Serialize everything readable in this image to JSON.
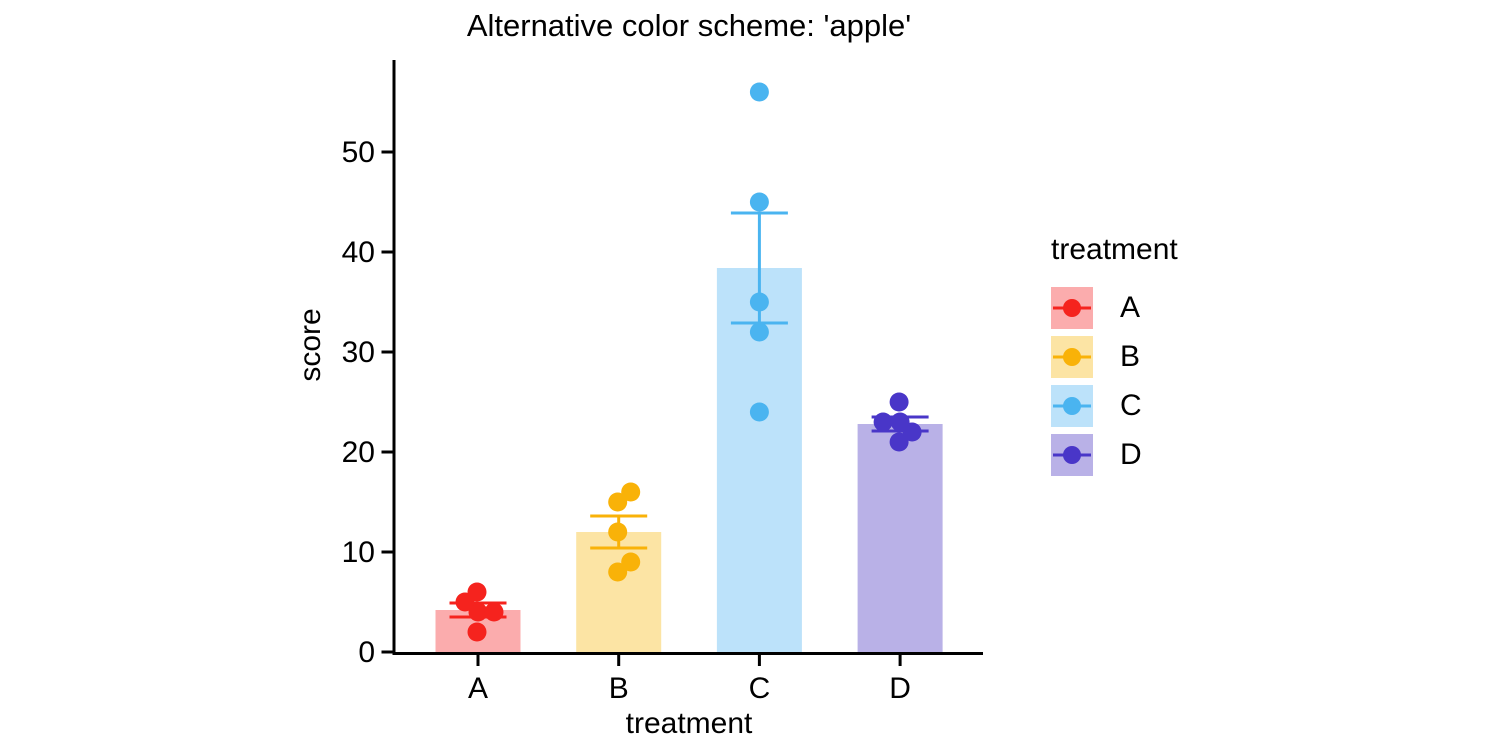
{
  "chart_data": {
    "type": "bar",
    "title": "Alternative color scheme: 'apple'",
    "xlabel": "treatment",
    "ylabel": "score",
    "ylim": [
      0,
      59
    ],
    "yticks": [
      0,
      10,
      20,
      30,
      40,
      50
    ],
    "categories": [
      "A",
      "B",
      "C",
      "D"
    ],
    "grid": false,
    "legend": {
      "title": "treatment",
      "position": "right",
      "entries": [
        "A",
        "B",
        "C",
        "D"
      ]
    },
    "series": [
      {
        "name": "A",
        "mean": 4.2,
        "error_low": 3.5,
        "error_high": 4.9,
        "points": [
          2,
          4,
          4,
          5,
          6
        ],
        "jitter_dx": [
          -1,
          0,
          16,
          -13,
          -1
        ],
        "point_color": "#F5231E",
        "bar_fill": "#FBACAD"
      },
      {
        "name": "B",
        "mean": 12,
        "error_low": 10.4,
        "error_high": 13.6,
        "points": [
          8,
          9,
          12,
          15,
          16
        ],
        "jitter_dx": [
          -1,
          12,
          -1,
          -1,
          12
        ],
        "point_color": "#F9B208",
        "bar_fill": "#FCE4A4"
      },
      {
        "name": "C",
        "mean": 38.4,
        "error_low": 32.9,
        "error_high": 43.9,
        "points": [
          24,
          32,
          35,
          45,
          56
        ],
        "jitter_dx": [
          0,
          0,
          0,
          0,
          0
        ],
        "point_color": "#4AB4F0",
        "bar_fill": "#BCE2FA"
      },
      {
        "name": "D",
        "mean": 22.8,
        "error_low": 22.1,
        "error_high": 23.5,
        "points": [
          21,
          22,
          23,
          23,
          25
        ],
        "jitter_dx": [
          -1,
          12,
          -17,
          0,
          -1
        ],
        "point_color": "#4936C8",
        "bar_fill": "#B9B1E7"
      }
    ]
  }
}
